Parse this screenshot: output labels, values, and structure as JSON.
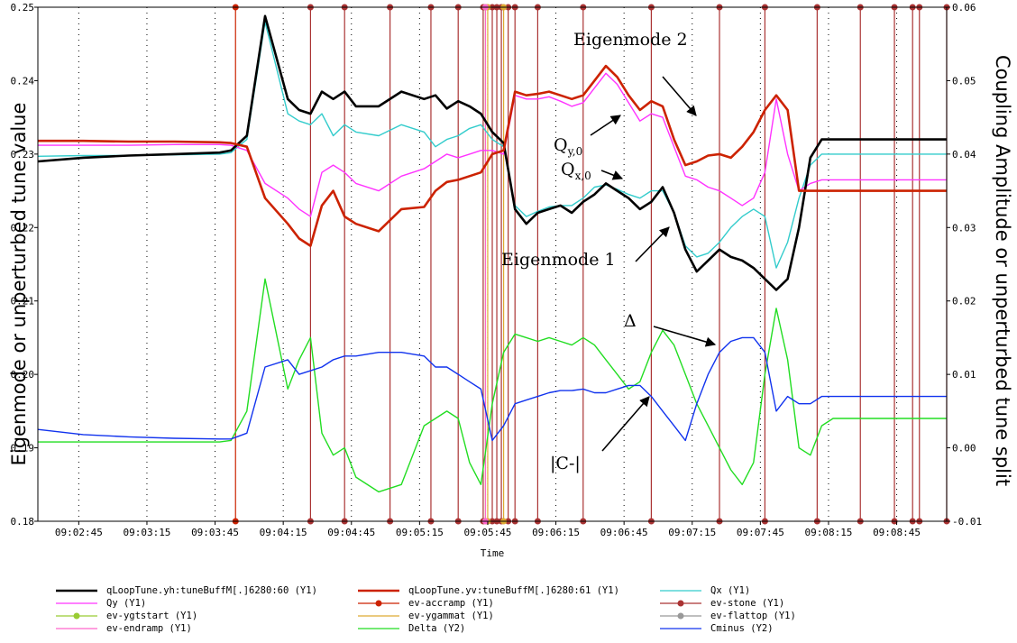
{
  "chart_data": {
    "type": "line",
    "xlabel": "Time",
    "ylabel_left": "Eigenmode or unperturbed tune value",
    "ylabel_right": "Coupling Amplitude or unperturbed tune split",
    "x_ticks": [
      "09:02:45",
      "09:03:15",
      "09:03:45",
      "09:04:15",
      "09:04:45",
      "09:05:15",
      "09:05:45",
      "09:06:15",
      "09:06:45",
      "09:07:15",
      "09:07:45",
      "09:08:15",
      "09:08:45"
    ],
    "y1_ticks": [
      "0.18",
      "0.19",
      "0.20",
      "0.21",
      "0.22",
      "0.23",
      "0.24",
      "0.25"
    ],
    "y2_ticks": [
      "-0.01",
      "0.00",
      "0.01",
      "0.02",
      "0.03",
      "0.04",
      "0.05",
      "0.06"
    ],
    "xlim": [
      "09:02:27",
      "09:09:07"
    ],
    "y1lim": [
      0.18,
      0.25
    ],
    "y2lim": [
      -0.01,
      0.06
    ],
    "grid": "vertical dotted",
    "x_seconds": [
      0,
      20,
      40,
      60,
      80,
      85,
      92,
      100,
      110,
      115,
      120,
      125,
      130,
      135,
      140,
      150,
      160,
      170,
      175,
      180,
      185,
      190,
      195,
      200,
      205,
      210,
      215,
      220,
      225,
      230,
      235,
      240,
      245,
      250,
      255,
      260,
      265,
      270,
      275,
      280,
      285,
      290,
      295,
      300,
      305,
      310,
      315,
      320,
      325,
      330,
      335,
      340,
      345,
      350,
      355,
      360,
      365,
      370,
      375,
      380,
      385,
      390,
      395,
      400
    ],
    "series": [
      {
        "name": "qLoopTune.yh:tuneBuffM[.]6280:60 (Y1)",
        "color": "#000000",
        "axis": "y1",
        "values": [
          0.229,
          0.2295,
          0.2298,
          0.23,
          0.2302,
          0.2305,
          0.2325,
          0.2488,
          0.2375,
          0.236,
          0.2355,
          0.2385,
          0.2375,
          0.2385,
          0.2365,
          0.2365,
          0.2385,
          0.2375,
          0.238,
          0.2362,
          0.2372,
          0.2365,
          0.2355,
          0.233,
          0.2315,
          0.2225,
          0.2205,
          0.222,
          0.2225,
          0.223,
          0.222,
          0.2235,
          0.2245,
          0.226,
          0.225,
          0.224,
          0.2225,
          0.2235,
          0.2255,
          0.222,
          0.217,
          0.214,
          0.2155,
          0.217,
          0.216,
          0.2155,
          0.2145,
          0.213,
          0.2115,
          0.213,
          0.22,
          0.2295,
          0.232,
          0.232,
          0.232,
          0.232,
          0.232,
          0.232,
          0.232,
          0.232,
          0.232,
          0.232,
          0.232,
          0.232
        ]
      },
      {
        "name": "qLoopTune.yv:tuneBuffM[.]6280:61 (Y1)",
        "color": "#cc2200",
        "axis": "y1",
        "values": [
          0.2318,
          0.2318,
          0.2317,
          0.2317,
          0.2316,
          0.2315,
          0.231,
          0.224,
          0.2205,
          0.2185,
          0.2175,
          0.223,
          0.225,
          0.2215,
          0.2205,
          0.2195,
          0.2225,
          0.2228,
          0.225,
          0.2262,
          0.2265,
          0.227,
          0.2275,
          0.23,
          0.2305,
          0.2385,
          0.238,
          0.2382,
          0.2385,
          0.238,
          0.2375,
          0.238,
          0.24,
          0.242,
          0.2405,
          0.238,
          0.236,
          0.2372,
          0.2365,
          0.232,
          0.2285,
          0.229,
          0.2298,
          0.23,
          0.2295,
          0.231,
          0.233,
          0.236,
          0.238,
          0.236,
          0.225,
          0.225,
          0.225,
          0.225,
          0.225,
          0.225,
          0.225,
          0.225,
          0.225,
          0.225,
          0.225,
          0.225,
          0.225,
          0.225
        ]
      },
      {
        "name": "Qx (Y1)",
        "color": "#33cccc",
        "axis": "y1",
        "values": [
          0.2297,
          0.2298,
          0.2298,
          0.2299,
          0.23,
          0.2302,
          0.232,
          0.248,
          0.2355,
          0.2345,
          0.234,
          0.2355,
          0.2325,
          0.234,
          0.233,
          0.2325,
          0.234,
          0.233,
          0.231,
          0.232,
          0.2325,
          0.2335,
          0.234,
          0.232,
          0.231,
          0.223,
          0.2215,
          0.2222,
          0.2228,
          0.223,
          0.223,
          0.224,
          0.2255,
          0.2258,
          0.2252,
          0.2245,
          0.224,
          0.225,
          0.225,
          0.222,
          0.2175,
          0.216,
          0.2165,
          0.218,
          0.22,
          0.2215,
          0.2225,
          0.2215,
          0.2145,
          0.218,
          0.224,
          0.2285,
          0.23,
          0.23,
          0.23,
          0.23,
          0.23,
          0.23,
          0.23,
          0.23,
          0.23,
          0.23,
          0.23,
          0.23
        ]
      },
      {
        "name": "Qy (Y1)",
        "color": "#ff33ff",
        "axis": "y1",
        "values": [
          0.2312,
          0.2312,
          0.2312,
          0.2313,
          0.2313,
          0.2312,
          0.2305,
          0.226,
          0.224,
          0.2225,
          0.2215,
          0.2275,
          0.2285,
          0.2275,
          0.226,
          0.225,
          0.227,
          0.228,
          0.229,
          0.23,
          0.2295,
          0.23,
          0.2305,
          0.2305,
          0.23,
          0.238,
          0.2375,
          0.2375,
          0.2378,
          0.2372,
          0.2365,
          0.237,
          0.239,
          0.241,
          0.2395,
          0.237,
          0.2345,
          0.2355,
          0.235,
          0.231,
          0.227,
          0.2265,
          0.2255,
          0.225,
          0.224,
          0.223,
          0.224,
          0.2275,
          0.2375,
          0.23,
          0.225,
          0.226,
          0.2265,
          0.2265,
          0.2265,
          0.2265,
          0.2265,
          0.2265,
          0.2265,
          0.2265,
          0.2265,
          0.2265,
          0.2265,
          0.2265
        ]
      },
      {
        "name": "Delta (Y2)",
        "color": "#22dd22",
        "axis": "y2",
        "values": [
          0.0008,
          0.0008,
          0.0008,
          0.0008,
          0.0008,
          0.001,
          0.005,
          0.023,
          0.008,
          0.012,
          0.015,
          0.002,
          -0.001,
          0.0,
          -0.004,
          -0.006,
          -0.005,
          0.003,
          0.004,
          0.005,
          0.004,
          -0.002,
          -0.005,
          0.006,
          0.013,
          0.0155,
          0.015,
          0.0145,
          0.015,
          0.0145,
          0.014,
          0.015,
          0.014,
          0.012,
          0.01,
          0.008,
          0.009,
          0.013,
          0.016,
          0.014,
          0.01,
          0.006,
          0.003,
          0.0,
          -0.003,
          -0.005,
          -0.002,
          0.01,
          0.019,
          0.012,
          0.0,
          -0.001,
          0.003,
          0.004,
          0.004,
          0.004,
          0.004,
          0.004,
          0.004,
          0.004,
          0.004,
          0.004,
          0.004,
          0.004
        ]
      },
      {
        "name": "Cminus (Y2)",
        "color": "#1133ee",
        "axis": "y2",
        "values": [
          0.0025,
          0.0018,
          0.0015,
          0.0013,
          0.0012,
          0.0012,
          0.002,
          0.011,
          0.012,
          0.01,
          0.0105,
          0.011,
          0.012,
          0.0125,
          0.0125,
          0.013,
          0.013,
          0.0125,
          0.011,
          0.011,
          0.01,
          0.009,
          0.008,
          0.001,
          0.003,
          0.006,
          0.0065,
          0.007,
          0.0075,
          0.0078,
          0.0078,
          0.008,
          0.0075,
          0.0075,
          0.008,
          0.0085,
          0.0085,
          0.007,
          0.005,
          0.003,
          0.001,
          0.006,
          0.01,
          0.013,
          0.0145,
          0.015,
          0.015,
          0.013,
          0.005,
          0.007,
          0.006,
          0.006,
          0.007,
          0.007,
          0.007,
          0.007,
          0.007,
          0.007,
          0.007,
          0.007,
          0.007,
          0.007,
          0.007,
          0.007
        ]
      }
    ],
    "event_lines": [
      {
        "name": "ev-accramp (Y1)",
        "color": "#cc2200",
        "x_seconds": [
          87
        ]
      },
      {
        "name": "ev-stone (Y1)",
        "color": "#aa3333",
        "x_seconds": [
          120,
          135,
          155,
          173,
          185,
          196,
          200,
          202,
          204,
          207,
          210,
          220,
          240,
          270,
          300,
          320,
          343,
          362,
          377,
          385,
          388,
          400
        ]
      },
      {
        "name": "ev-ygtstart (Y1)",
        "color": "#99cc33",
        "x_seconds": [
          197
        ]
      },
      {
        "name": "ev-ygammat (Y1)",
        "color": "#ddaa33",
        "x_seconds": [
          198,
          205
        ]
      },
      {
        "name": "ev-flattop (Y1)",
        "color": "#999999",
        "x_seconds": [
          407
        ]
      },
      {
        "name": "ev-endramp (Y1)",
        "color": "#ff66cc",
        "x_seconds": [
          197
        ]
      }
    ],
    "annotations": [
      {
        "text": "Eigenmode 2"
      },
      {
        "text": "Eigenmode 1"
      },
      {
        "text": "Q",
        "sub": "y,0"
      },
      {
        "text": "Q",
        "sub": "x,0"
      },
      {
        "text": "Δ"
      },
      {
        "text": "|C-|"
      }
    ],
    "legend": [
      {
        "label": "qLoopTune.yh:tuneBuffM[.]6280:60 (Y1)",
        "color": "#000000",
        "marker": false,
        "thick": true
      },
      {
        "label": "qLoopTune.yv:tuneBuffM[.]6280:61 (Y1)",
        "color": "#cc2200",
        "marker": false,
        "thick": true
      },
      {
        "label": "Qx (Y1)",
        "color": "#33cccc",
        "marker": false,
        "thick": false
      },
      {
        "label": "Qy (Y1)",
        "color": "#ff33ff",
        "marker": false,
        "thick": false
      },
      {
        "label": "ev-accramp (Y1)",
        "color": "#cc2200",
        "marker": true,
        "thick": false
      },
      {
        "label": "ev-stone (Y1)",
        "color": "#aa3333",
        "marker": true,
        "thick": false
      },
      {
        "label": "ev-ygtstart (Y1)",
        "color": "#99cc33",
        "marker": true,
        "thick": false
      },
      {
        "label": "ev-ygammat (Y1)",
        "color": "#ddaa33",
        "marker": false,
        "thick": false
      },
      {
        "label": "ev-flattop (Y1)",
        "color": "#999999",
        "marker": true,
        "thick": false
      },
      {
        "label": "ev-endramp (Y1)",
        "color": "#ff66cc",
        "marker": false,
        "thick": false
      },
      {
        "label": "Delta (Y2)",
        "color": "#22dd22",
        "marker": false,
        "thick": false
      },
      {
        "label": "Cminus (Y2)",
        "color": "#1133ee",
        "marker": false,
        "thick": false
      }
    ]
  }
}
